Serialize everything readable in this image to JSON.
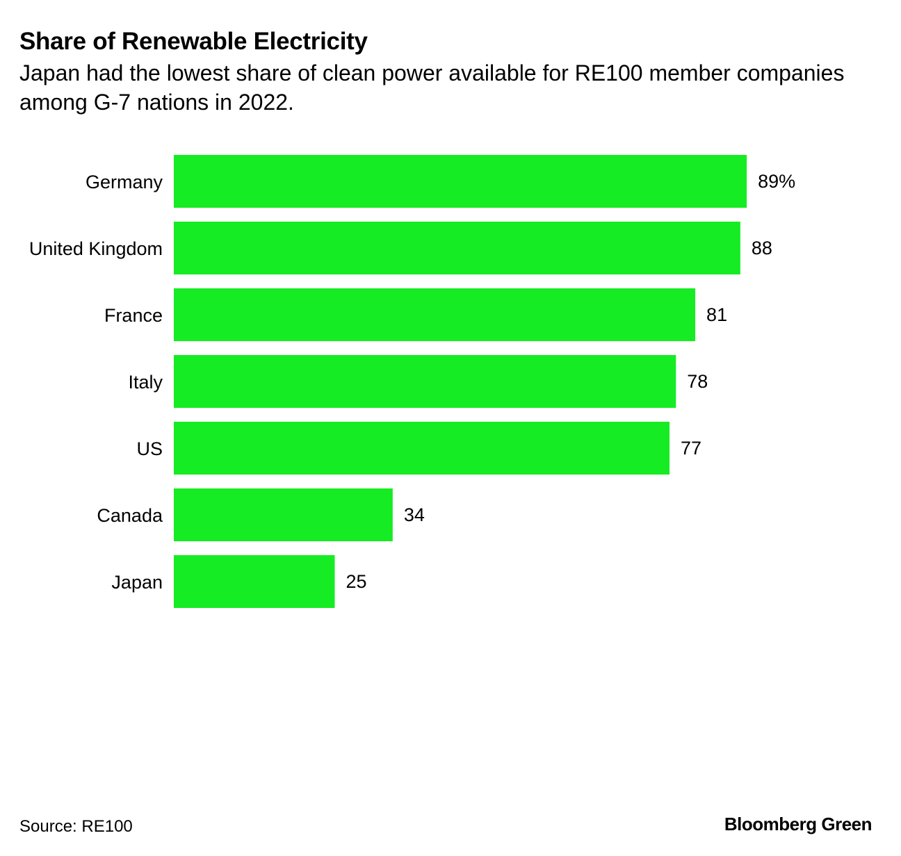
{
  "title": "Share of Renewable Electricity",
  "subtitle": "Japan had the lowest share of clean power available for RE100 member companies among G-7 nations in 2022.",
  "source": "Source: RE100",
  "brand": "Bloomberg Green",
  "colors": {
    "bar": "#15ec23",
    "text": "#000000",
    "background": "#ffffff"
  },
  "chart_data": {
    "type": "bar",
    "orientation": "horizontal",
    "title": "Share of Renewable Electricity",
    "subtitle": "Japan had the lowest share of clean power available for RE100 member companies among G-7 nations in 2022.",
    "categories": [
      "Germany",
      "United Kingdom",
      "France",
      "Italy",
      "US",
      "Canada",
      "Japan"
    ],
    "values": [
      89,
      88,
      81,
      78,
      77,
      34,
      25
    ],
    "value_labels": [
      "89%",
      "88",
      "81",
      "78",
      "77",
      "34",
      "25"
    ],
    "unit": "%",
    "xlim": [
      0,
      100
    ],
    "grid": false,
    "legend": "none"
  }
}
